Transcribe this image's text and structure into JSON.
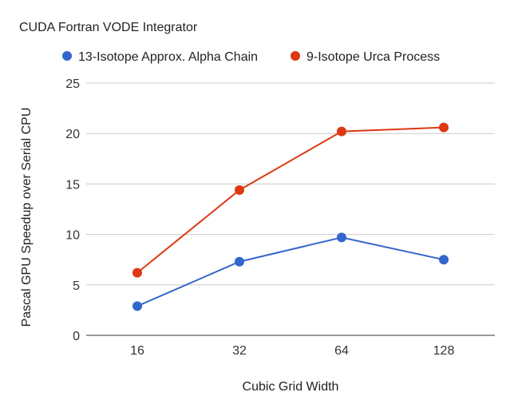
{
  "chart_data": {
    "type": "line",
    "title": "CUDA Fortran VODE Integrator",
    "xlabel": "Cubic Grid Width",
    "ylabel": "Pascal GPU Speedup over Serial CPU",
    "categories": [
      "16",
      "32",
      "64",
      "128"
    ],
    "ylim": [
      0,
      25
    ],
    "yticks": [
      0,
      5,
      10,
      15,
      20,
      25
    ],
    "grid": true,
    "legend": "top",
    "series": [
      {
        "name": "13-Isotope Approx. Alpha Chain",
        "color": "#3366cc",
        "values": [
          2.9,
          7.3,
          9.7,
          7.5
        ]
      },
      {
        "name": "9-Isotope Urca Process",
        "color": "#dc3912",
        "values": [
          6.2,
          14.4,
          20.2,
          20.6
        ]
      }
    ]
  }
}
